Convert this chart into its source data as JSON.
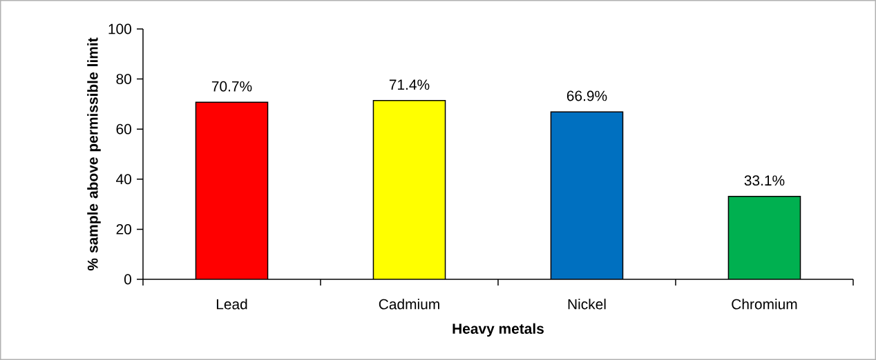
{
  "chart_data": {
    "type": "bar",
    "xlabel": "Heavy metals",
    "ylabel": "% sample above permissible limit",
    "categories": [
      "Lead",
      "Cadmium",
      "Nickel",
      "Chromium"
    ],
    "values": [
      70.7,
      71.4,
      66.9,
      33.1
    ],
    "colors": [
      "#ff0000",
      "#ffff00",
      "#0070c0",
      "#00b050"
    ],
    "value_labels": [
      "70.7%",
      "71.4%",
      "66.9%",
      "33.1%"
    ],
    "ylim": [
      0,
      100
    ],
    "yticks": [
      0,
      20,
      40,
      60,
      80,
      100
    ]
  }
}
